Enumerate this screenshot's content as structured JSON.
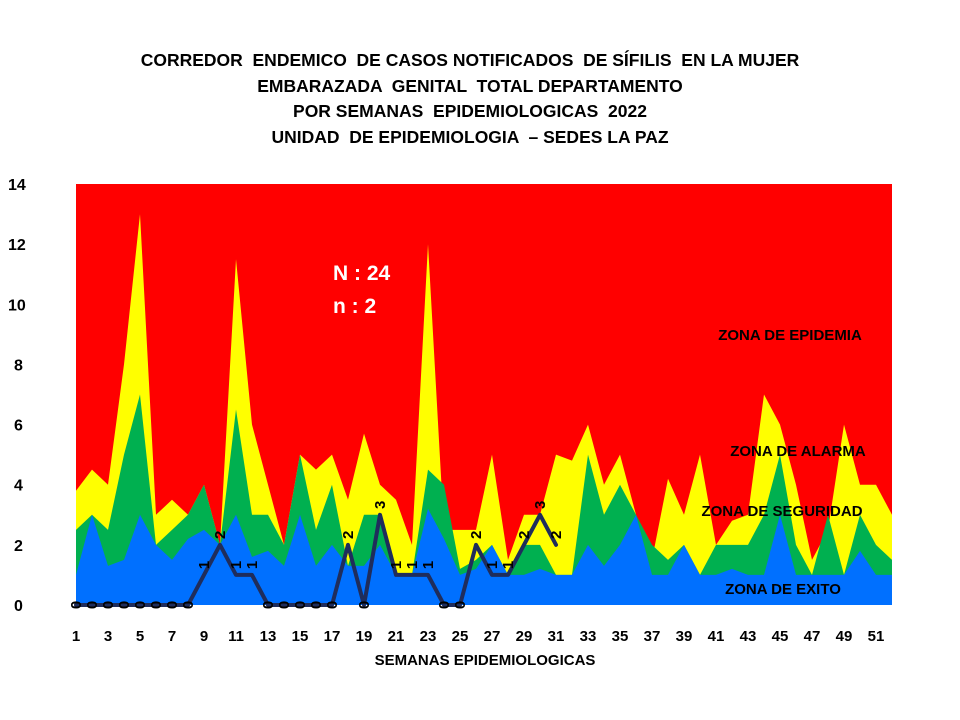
{
  "title_lines": [
    "CORREDOR  ENDEMICO  DE CASOS NOTIFICADOS  DE SÍFILIS  EN LA MUJER",
    "EMBARAZADA  GENITAL  TOTAL DEPARTAMENTO",
    "POR SEMANAS  EPIDEMIOLOGICAS  2022",
    "UNIDAD  DE EPIDEMIOLOGIA  – SEDES LA PAZ"
  ],
  "annotations": {
    "N": "N : 24",
    "n": "n : 2"
  },
  "zone_labels": {
    "epidemia": "ZONA DE EPIDEMIA",
    "alarma": "ZONA DE ALARMA",
    "seguridad": "ZONA DE  SEGURIDAD",
    "exito": "ZONA DE  EXITO"
  },
  "colors": {
    "epidemia": "#ff0000",
    "alarma": "#ffff00",
    "seguridad": "#00b050",
    "exito": "#0070ff",
    "cases_line": "#1f2d5c"
  },
  "chart_data": {
    "type": "area",
    "xlabel": "SEMANAS EPIDEMIOLOGICAS",
    "ylabel": "",
    "ylim": [
      0,
      14
    ],
    "yticks": [
      0,
      2,
      4,
      6,
      8,
      10,
      12,
      14
    ],
    "xtick_labels": [
      "1",
      "3",
      "5",
      "7",
      "9",
      "11",
      "13",
      "15",
      "17",
      "19",
      "21",
      "23",
      "25",
      "27",
      "29",
      "31",
      "33",
      "35",
      "37",
      "39",
      "41",
      "43",
      "45",
      "47",
      "49",
      "51"
    ],
    "x": [
      1,
      2,
      3,
      4,
      5,
      6,
      7,
      8,
      9,
      10,
      11,
      12,
      13,
      14,
      15,
      16,
      17,
      18,
      19,
      20,
      21,
      22,
      23,
      24,
      25,
      26,
      27,
      28,
      29,
      30,
      31,
      32,
      33,
      34,
      35,
      36,
      37,
      38,
      39,
      40,
      41,
      42,
      43,
      44,
      45,
      46,
      47,
      48,
      49,
      50,
      51,
      52
    ],
    "series": [
      {
        "name": "ZONA DE  EXITO",
        "values": [
          1,
          3,
          1.3,
          1.5,
          3,
          2,
          1.5,
          2.2,
          2.5,
          2,
          3,
          1.6,
          1.8,
          1.3,
          3,
          1.3,
          2,
          1.3,
          1.3,
          2,
          1,
          1,
          3.2,
          2.2,
          1,
          1.2,
          2,
          1,
          1,
          1.2,
          1,
          1,
          2,
          1.3,
          2,
          3,
          1,
          1,
          2,
          1,
          1,
          1.2,
          1,
          1,
          3,
          1,
          1,
          1,
          1,
          1.8,
          1,
          1
        ]
      },
      {
        "name": "ZONA DE  SEGURIDAD",
        "values": [
          2.5,
          3,
          2.5,
          5,
          7,
          2,
          2.5,
          3,
          4,
          2,
          6.5,
          3,
          3,
          2,
          5,
          2.5,
          4,
          1.3,
          3,
          3,
          1,
          1,
          4.5,
          4,
          1.2,
          1.5,
          2,
          1,
          2,
          2,
          1,
          1,
          5,
          3,
          4,
          3,
          2,
          1.5,
          2,
          1,
          2,
          2,
          2,
          3,
          5,
          2,
          1,
          3,
          1,
          3,
          2,
          1.5
        ]
      },
      {
        "name": "ZONA DE ALARMA",
        "values": [
          3.8,
          4.5,
          4,
          8,
          13,
          3,
          3.5,
          3,
          4,
          2,
          11.5,
          6,
          4,
          2,
          5,
          4.5,
          5,
          3.5,
          5.7,
          4,
          3.5,
          2,
          12,
          2.5,
          2.5,
          2.5,
          5,
          1.5,
          3,
          3,
          5,
          4.8,
          6,
          4,
          5,
          3,
          1.5,
          4.2,
          3,
          5,
          2,
          2.8,
          3,
          7,
          6,
          4,
          1.5,
          2.5,
          6,
          4,
          4,
          3
        ]
      },
      {
        "name": "ZONA DE EPIDEMIA",
        "values": [
          14,
          14,
          14,
          14,
          14,
          14,
          14,
          14,
          14,
          14,
          14,
          14,
          14,
          14,
          14,
          14,
          14,
          14,
          14,
          14,
          14,
          14,
          14,
          14,
          14,
          14,
          14,
          14,
          14,
          14,
          14,
          14,
          14,
          14,
          14,
          14,
          14,
          14,
          14,
          14,
          14,
          14,
          14,
          14,
          14,
          14,
          14,
          14,
          14,
          14,
          14,
          14
        ]
      },
      {
        "name": "cases",
        "x": [
          1,
          2,
          3,
          4,
          5,
          6,
          7,
          8,
          9,
          10,
          11,
          12,
          13,
          14,
          15,
          16,
          17,
          18,
          19,
          20,
          21,
          22,
          23,
          24,
          25,
          26,
          27,
          28,
          29,
          30,
          31
        ],
        "values": [
          0,
          0,
          0,
          0,
          0,
          0,
          0,
          0,
          1,
          2,
          1,
          1,
          0,
          0,
          0,
          0,
          0,
          2,
          0,
          3,
          1,
          1,
          1,
          0,
          0,
          2,
          1,
          1,
          2,
          3,
          2
        ],
        "point_labels": [
          "0",
          "0",
          "0",
          "0",
          "0",
          "0",
          "0",
          "0",
          "1",
          "2",
          "1",
          "1",
          "0",
          "0",
          "0",
          "0",
          "0",
          "2",
          "0",
          "3",
          "1",
          "1",
          "1",
          "0",
          "0",
          "2",
          "1",
          "1",
          "2",
          "3",
          "2"
        ]
      }
    ]
  }
}
